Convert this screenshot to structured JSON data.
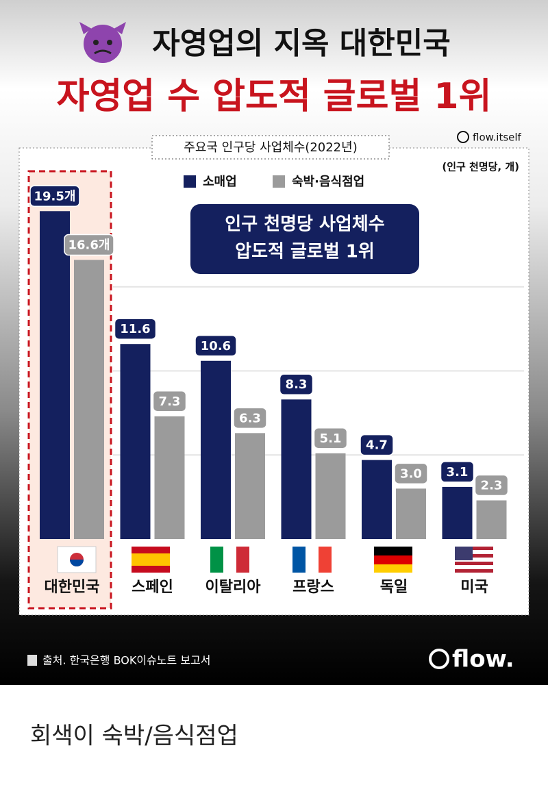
{
  "headline": [
    "자영업의 지옥 대한민국",
    "자영업 수 압도적 글로벌 1위"
  ],
  "handle": "flow.itself",
  "chart_data": {
    "type": "bar",
    "title": "주요국 인구당 사업체수(2022년)",
    "unit": "(인구 천명당, 개)",
    "annotation": [
      "인구 천명당 사업체수",
      "압도적 글로벌 1위"
    ],
    "categories": [
      "대한민국",
      "스페인",
      "이탈리아",
      "프랑스",
      "독일",
      "미국"
    ],
    "series": [
      {
        "name": "소매업",
        "color": "#14205e",
        "values": [
          19.5,
          11.6,
          10.6,
          8.3,
          4.7,
          3.1
        ],
        "value_labels": [
          "19.5개",
          "11.6",
          "10.6",
          "8.3",
          "4.7",
          "3.1"
        ]
      },
      {
        "name": "숙박·음식점업",
        "color": "#9b9b9b",
        "values": [
          16.6,
          7.3,
          6.3,
          5.1,
          3.0,
          2.3
        ],
        "value_labels": [
          "16.6개",
          "7.3",
          "6.3",
          "5.1",
          "3.0",
          "2.3"
        ]
      }
    ],
    "ylim": [
      0,
      20
    ],
    "gridlines": [
      5,
      10,
      15
    ]
  },
  "source": "출처. 한국은행 BOK이슈노트 보고서",
  "logo": "flow.",
  "caption": "회색이 숙박/음식점업"
}
